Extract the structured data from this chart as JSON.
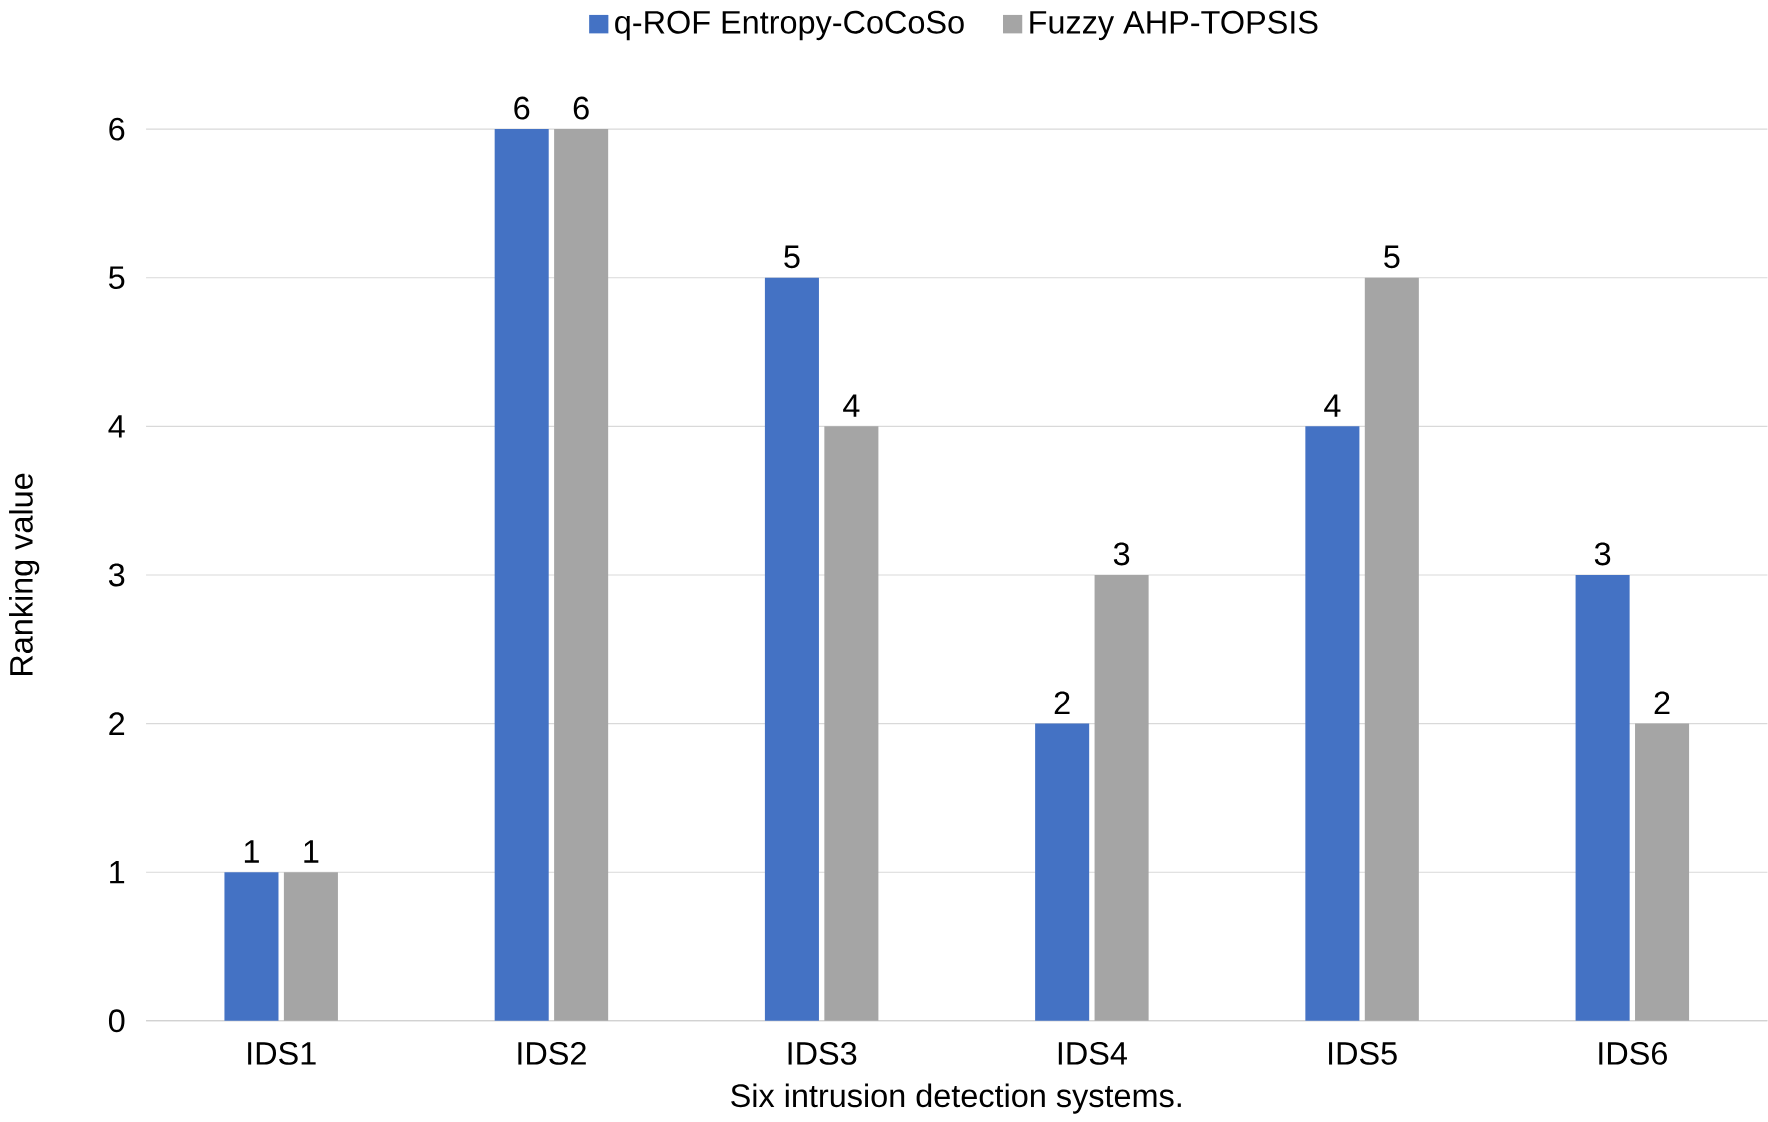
{
  "chart_data": {
    "type": "bar",
    "xlabel": "Six intrusion detection systems.",
    "ylabel": "Ranking value",
    "categories": [
      "IDS1",
      "IDS2",
      "IDS3",
      "IDS4",
      "IDS5",
      "IDS6"
    ],
    "series": [
      {
        "name": "q-ROF Entropy-CoCoSo",
        "color": "#4472c4",
        "values": [
          1,
          6,
          5,
          2,
          4,
          3
        ]
      },
      {
        "name": "Fuzzy AHP-TOPSIS",
        "color": "#a5a5a5",
        "values": [
          1,
          6,
          4,
          3,
          5,
          2
        ]
      }
    ],
    "ylim": [
      0,
      6
    ],
    "yticks": [
      0,
      1,
      2,
      3,
      4,
      5,
      6
    ],
    "grid": "y",
    "legend": "top",
    "data_labels": true
  }
}
